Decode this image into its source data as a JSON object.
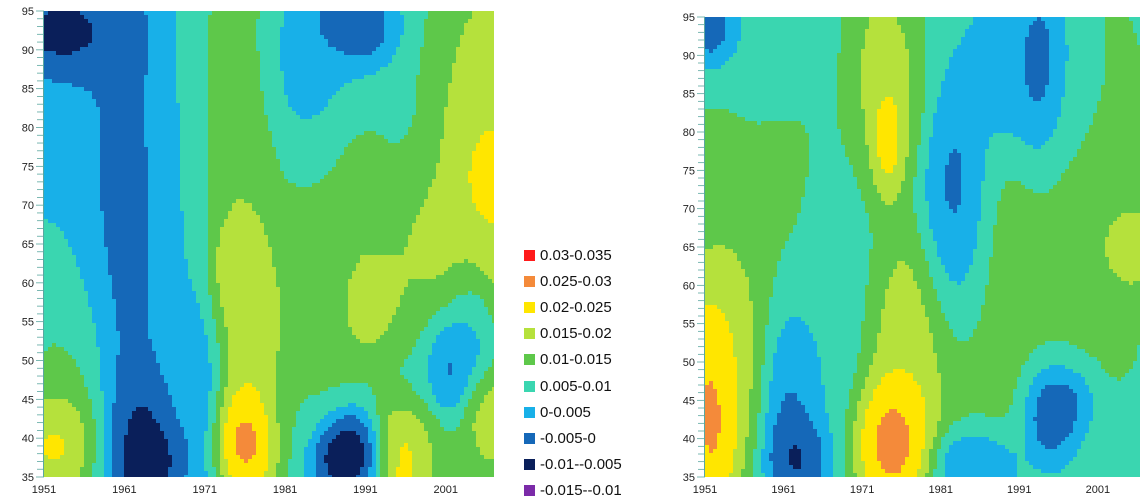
{
  "chart_data": [
    {
      "type": "heatmap",
      "x_ticks": [
        "1951",
        "1961",
        "1971",
        "1981",
        "1991",
        "2001"
      ],
      "y_ticks": [
        "35",
        "40",
        "45",
        "50",
        "55",
        "60",
        "65",
        "70",
        "75",
        "80",
        "85",
        "90",
        "95"
      ],
      "xlim": [
        1951,
        2007
      ],
      "ylim": [
        35,
        95
      ],
      "blobs": [
        {
          "x": 1953,
          "y": 92,
          "v": -0.013,
          "sx": 3,
          "sy": 3
        },
        {
          "x": 1956,
          "y": 92,
          "v": -0.008,
          "sx": 4,
          "sy": 4
        },
        {
          "x": 1954,
          "y": 72,
          "v": 0.001,
          "sx": 4,
          "sy": 15
        },
        {
          "x": 1952,
          "y": 55,
          "v": 0.012,
          "sx": 2,
          "sy": 8
        },
        {
          "x": 1953,
          "y": 40,
          "v": 0.032,
          "sx": 2.5,
          "sy": 4
        },
        {
          "x": 1955,
          "y": 46,
          "v": 0.014,
          "sx": 3,
          "sy": 10
        },
        {
          "x": 1961,
          "y": 68,
          "v": -0.006,
          "sx": 3,
          "sy": 25
        },
        {
          "x": 1963,
          "y": 42,
          "v": -0.01,
          "sx": 2.5,
          "sy": 5
        },
        {
          "x": 1964,
          "y": 37,
          "v": -0.015,
          "sx": 2.5,
          "sy": 3
        },
        {
          "x": 1968,
          "y": 72,
          "v": 0.004,
          "sx": 2.5,
          "sy": 20
        },
        {
          "x": 1970,
          "y": 45,
          "v": -0.003,
          "sx": 2,
          "sy": 8
        },
        {
          "x": 1975,
          "y": 80,
          "v": 0.017,
          "sx": 3,
          "sy": 12
        },
        {
          "x": 1975,
          "y": 62,
          "v": 0.023,
          "sx": 2,
          "sy": 4
        },
        {
          "x": 1976,
          "y": 40,
          "v": 0.034,
          "sx": 2.5,
          "sy": 4
        },
        {
          "x": 1977,
          "y": 52,
          "v": 0.022,
          "sx": 3,
          "sy": 8
        },
        {
          "x": 1982,
          "y": 88,
          "v": 0.002,
          "sx": 3,
          "sy": 6
        },
        {
          "x": 1986,
          "y": 83,
          "v": 0.004,
          "sx": 3,
          "sy": 5
        },
        {
          "x": 1989,
          "y": 93,
          "v": -0.009,
          "sx": 3,
          "sy": 3
        },
        {
          "x": 1985,
          "y": 60,
          "v": 0.013,
          "sx": 3,
          "sy": 10
        },
        {
          "x": 1982,
          "y": 44,
          "v": 0.009,
          "sx": 2,
          "sy": 5
        },
        {
          "x": 1989,
          "y": 38,
          "v": -0.016,
          "sx": 3,
          "sy": 3
        },
        {
          "x": 1990,
          "y": 70,
          "v": 0.017,
          "sx": 2,
          "sy": 6
        },
        {
          "x": 1992,
          "y": 57,
          "v": 0.021,
          "sx": 3,
          "sy": 4
        },
        {
          "x": 1996,
          "y": 38,
          "v": 0.033,
          "sx": 2.5,
          "sy": 4
        },
        {
          "x": 1997,
          "y": 50,
          "v": 0.008,
          "sx": 2.5,
          "sy": 6
        },
        {
          "x": 2000,
          "y": 62,
          "v": 0.019,
          "sx": 4,
          "sy": 8
        },
        {
          "x": 2001,
          "y": 50,
          "v": -0.01,
          "sx": 1.8,
          "sy": 4
        },
        {
          "x": 2004,
          "y": 53,
          "v": -0.004,
          "sx": 2,
          "sy": 6
        },
        {
          "x": 2006,
          "y": 75,
          "v": 0.026,
          "sx": 3,
          "sy": 12
        },
        {
          "x": 2004,
          "y": 88,
          "v": 0.015,
          "sx": 3,
          "sy": 6
        },
        {
          "x": 2006,
          "y": 43,
          "v": 0.024,
          "sx": 2,
          "sy": 4
        },
        {
          "x": 2000,
          "y": 38,
          "v": 0.01,
          "sx": 3,
          "sy": 3
        }
      ]
    },
    {
      "type": "heatmap",
      "x_ticks": [
        "1951",
        "1961",
        "1971",
        "1981",
        "1991",
        "2001"
      ],
      "y_ticks": [
        "35",
        "40",
        "45",
        "50",
        "55",
        "60",
        "65",
        "70",
        "75",
        "80",
        "85",
        "90",
        "95"
      ],
      "xlim": [
        1951,
        2007
      ],
      "ylim": [
        35,
        95
      ],
      "blobs": [
        {
          "x": 1952,
          "y": 93,
          "v": -0.012,
          "sx": 2,
          "sy": 3
        },
        {
          "x": 1954,
          "y": 78,
          "v": 0.011,
          "sx": 4,
          "sy": 12
        },
        {
          "x": 1952,
          "y": 45,
          "v": 0.034,
          "sx": 2,
          "sy": 9
        },
        {
          "x": 1954,
          "y": 55,
          "v": 0.021,
          "sx": 3,
          "sy": 10
        },
        {
          "x": 1961,
          "y": 90,
          "v": 0.004,
          "sx": 4,
          "sy": 5
        },
        {
          "x": 1962,
          "y": 70,
          "v": 0.013,
          "sx": 3,
          "sy": 15
        },
        {
          "x": 1962,
          "y": 45,
          "v": -0.008,
          "sx": 2,
          "sy": 9
        },
        {
          "x": 1963,
          "y": 38,
          "v": -0.012,
          "sx": 2,
          "sy": 3
        },
        {
          "x": 1966,
          "y": 55,
          "v": 0.004,
          "sx": 3,
          "sy": 12
        },
        {
          "x": 1969,
          "y": 72,
          "v": 0.008,
          "sx": 2.5,
          "sy": 12
        },
        {
          "x": 1973,
          "y": 85,
          "v": 0.022,
          "sx": 3,
          "sy": 8
        },
        {
          "x": 1974,
          "y": 79,
          "v": 0.029,
          "sx": 1.2,
          "sy": 4
        },
        {
          "x": 1975,
          "y": 40,
          "v": 0.035,
          "sx": 3,
          "sy": 5
        },
        {
          "x": 1978,
          "y": 52,
          "v": 0.022,
          "sx": 4,
          "sy": 9
        },
        {
          "x": 1983,
          "y": 67,
          "v": -0.006,
          "sx": 2.5,
          "sy": 10
        },
        {
          "x": 1986,
          "y": 47,
          "v": 0.012,
          "sx": 3,
          "sy": 9
        },
        {
          "x": 1985,
          "y": 37,
          "v": -0.01,
          "sx": 3,
          "sy": 3
        },
        {
          "x": 1989,
          "y": 60,
          "v": 0.014,
          "sx": 3,
          "sy": 10
        },
        {
          "x": 1992,
          "y": 88,
          "v": -0.002,
          "sx": 4,
          "sy": 6
        },
        {
          "x": 1994,
          "y": 88,
          "v": -0.009,
          "sx": 1.5,
          "sy": 5
        },
        {
          "x": 1997,
          "y": 85,
          "v": 0.006,
          "sx": 3,
          "sy": 6
        },
        {
          "x": 1996,
          "y": 44,
          "v": -0.012,
          "sx": 2.5,
          "sy": 4
        },
        {
          "x": 1996,
          "y": 55,
          "v": 0.012,
          "sx": 3,
          "sy": 5
        },
        {
          "x": 2001,
          "y": 72,
          "v": 0.014,
          "sx": 4,
          "sy": 15
        },
        {
          "x": 2005,
          "y": 65,
          "v": 0.025,
          "sx": 2,
          "sy": 3
        },
        {
          "x": 2001,
          "y": 38,
          "v": 0.008,
          "sx": 3,
          "sy": 4
        }
      ]
    }
  ],
  "legend": [
    {
      "label": "0.03-0.035",
      "color": "#ff1a1a"
    },
    {
      "label": "0.025-0.03",
      "color": "#f48a3a"
    },
    {
      "label": "0.02-0.025",
      "color": "#ffe600"
    },
    {
      "label": "0.015-0.02",
      "color": "#b5e13c"
    },
    {
      "label": "0.01-0.015",
      "color": "#5ec84a"
    },
    {
      "label": "0.005-0.01",
      "color": "#3ad6b0"
    },
    {
      "label": "0-0.005",
      "color": "#18b0e8"
    },
    {
      "label": "-0.005-0",
      "color": "#1568b8"
    },
    {
      "label": "-0.01--0.005",
      "color": "#0a1f5a"
    },
    {
      "label": "-0.015--0.01",
      "color": "#7b2aa8"
    }
  ]
}
